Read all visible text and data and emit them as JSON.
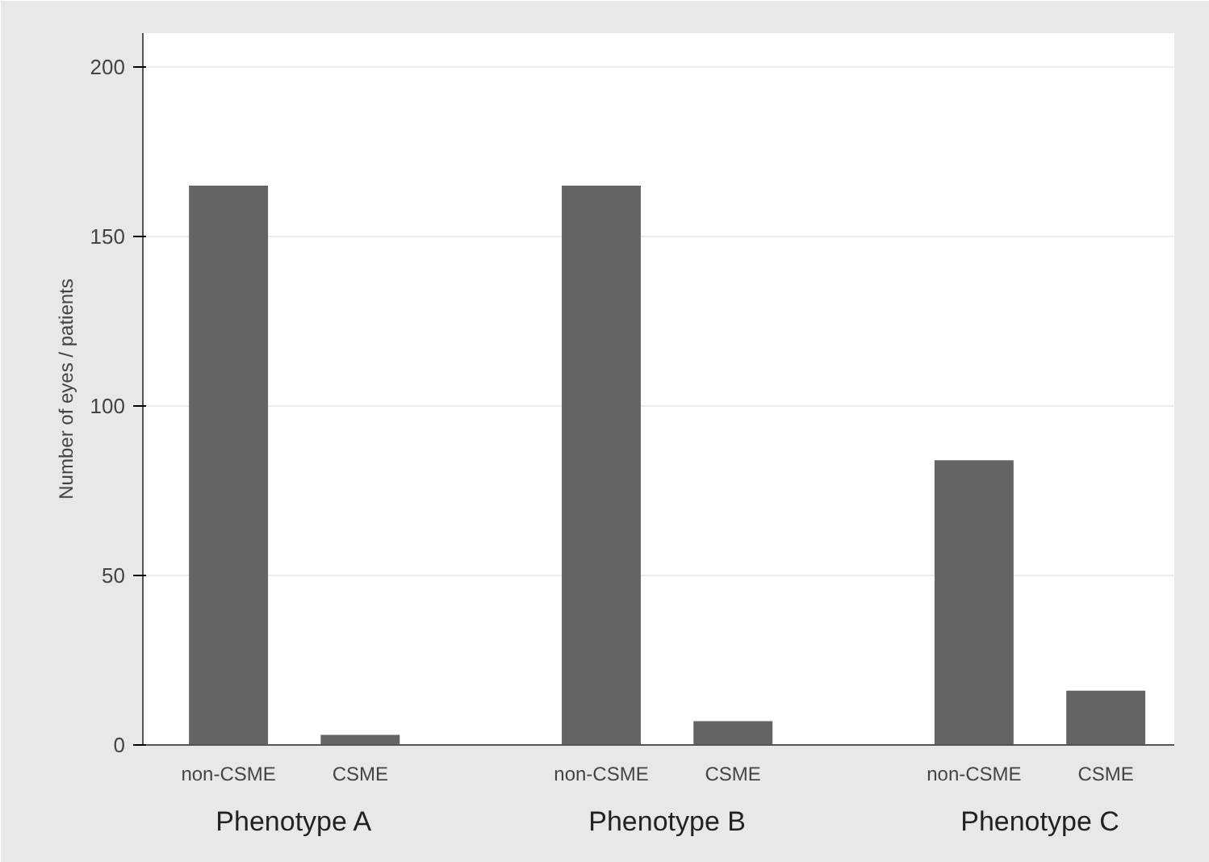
{
  "chart_data": {
    "type": "bar",
    "categories": [
      "non-CSME",
      "CSME",
      "non-CSME",
      "CSME",
      "non-CSME",
      "CSME"
    ],
    "values": [
      165,
      3,
      165,
      7,
      84,
      16
    ],
    "color": "#646464",
    "ylabel": "Number of eyes / patients",
    "annotations": [
      "Phenotype A",
      "Phenotype B",
      "Phenotype C"
    ],
    "ylim": [
      0,
      210
    ],
    "yticks": [
      0,
      50,
      100,
      150,
      200
    ],
    "grid": "y"
  }
}
